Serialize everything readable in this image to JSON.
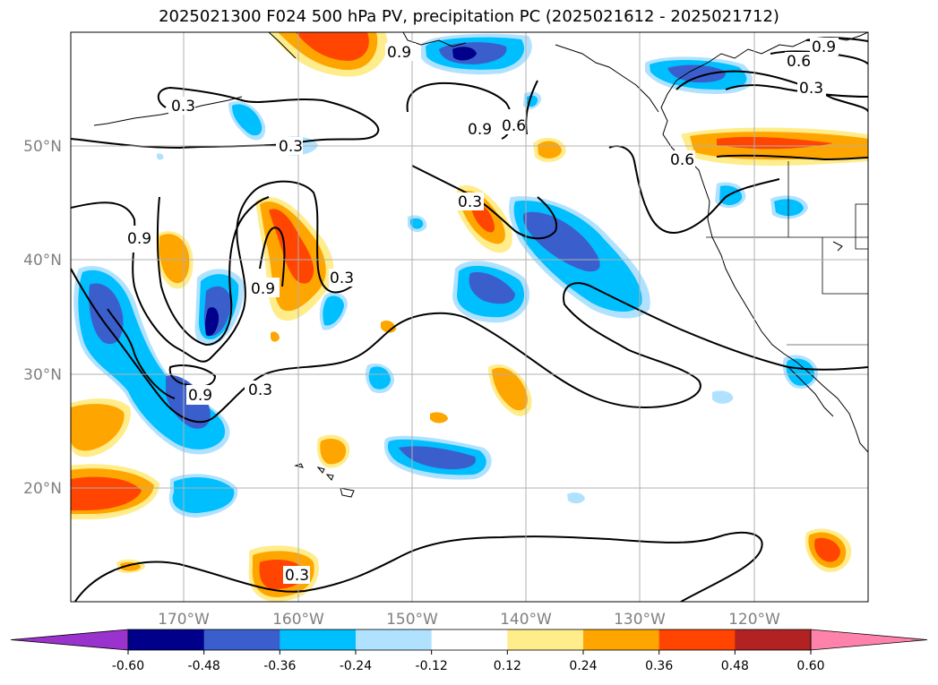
{
  "title": "2025021300 F024 500 hPa PV, precipitation PC (2025021612 - 2025021712)",
  "lat_labels": [
    "50°N",
    "40°N",
    "30°N",
    "20°N"
  ],
  "lon_labels": [
    "170°W",
    "160°W",
    "150°W",
    "140°W",
    "130°W",
    "120°W"
  ],
  "contour_labels": [
    "0.3",
    "0.3",
    "0.3",
    "0.3",
    "0.3",
    "0.3",
    "0.3",
    "0.6",
    "0.6",
    "0.6",
    "0.9",
    "0.9",
    "0.9",
    "0.9",
    "0.9",
    "0.9"
  ],
  "colorbar": {
    "ticks": [
      "-0.60",
      "-0.48",
      "-0.36",
      "-0.24",
      "-0.12",
      "0.12",
      "0.24",
      "0.36",
      "0.48",
      "0.60"
    ],
    "colors": [
      "#9a32cd",
      "#00008b",
      "#3a5fcd",
      "#00bfff",
      "#b0e2ff",
      "#ffffff",
      "#ffec8b",
      "#ffa500",
      "#ff4500",
      "#b22222",
      "#ff82ab"
    ]
  }
}
